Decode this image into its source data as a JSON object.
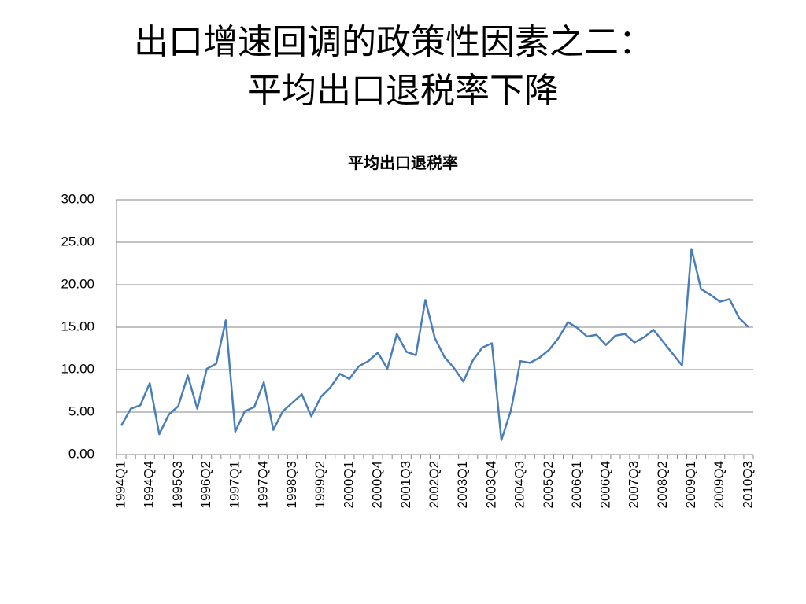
{
  "slide_title": [
    "出口增速回调的政策性因素之二：",
    "平均出口退税率下降"
  ],
  "chart_data": {
    "type": "line",
    "title": "平均出口退税率",
    "categories": [
      "1994Q1",
      null,
      null,
      "1994Q4",
      null,
      null,
      "1995Q3",
      null,
      null,
      "1996Q2",
      null,
      null,
      "1997Q1",
      null,
      null,
      "1997Q4",
      null,
      null,
      "1998Q3",
      null,
      null,
      "1999Q2",
      null,
      null,
      "2000Q1",
      null,
      null,
      "2000Q4",
      null,
      null,
      "2001Q3",
      null,
      null,
      "2002Q2",
      null,
      null,
      "2003Q1",
      null,
      null,
      "2003Q4",
      null,
      null,
      "2004Q3",
      null,
      null,
      "2005Q2",
      null,
      null,
      "2006Q1",
      null,
      null,
      "2006Q4",
      null,
      null,
      "2007Q3",
      null,
      null,
      "2008Q2",
      null,
      null,
      "2009Q1",
      null,
      null,
      "2009Q4",
      null,
      null,
      "2010Q3"
    ],
    "values": [
      3.4,
      5.4,
      5.8,
      8.4,
      2.4,
      4.7,
      5.7,
      9.3,
      5.4,
      10.1,
      10.7,
      15.8,
      2.7,
      5.1,
      5.6,
      8.5,
      2.9,
      5.1,
      6.1,
      7.1,
      4.5,
      6.8,
      7.9,
      9.5,
      8.9,
      10.4,
      11.0,
      12.0,
      10.1,
      14.2,
      12.1,
      11.7,
      18.2,
      13.7,
      11.5,
      10.2,
      8.6,
      11.1,
      12.6,
      13.1,
      1.7,
      5.2,
      11.0,
      10.8,
      11.4,
      12.3,
      13.7,
      15.6,
      14.9,
      13.9,
      14.1,
      12.9,
      14.0,
      14.2,
      13.2,
      13.8,
      14.7,
      13.3,
      11.9,
      10.5,
      24.2,
      19.5,
      18.8,
      18.0,
      18.3,
      16.1,
      15.0
    ],
    "color": "#4a7ebb",
    "ylim": [
      0,
      30
    ],
    "yticks": [
      {
        "value": 0,
        "label": "0.00"
      },
      {
        "value": 5,
        "label": "5.00"
      },
      {
        "value": 10,
        "label": "10.00"
      },
      {
        "value": 15,
        "label": "15.00"
      },
      {
        "value": 20,
        "label": "20.00"
      },
      {
        "value": 25,
        "label": "25.00"
      },
      {
        "value": 30,
        "label": "30.00"
      }
    ],
    "grid": true
  }
}
